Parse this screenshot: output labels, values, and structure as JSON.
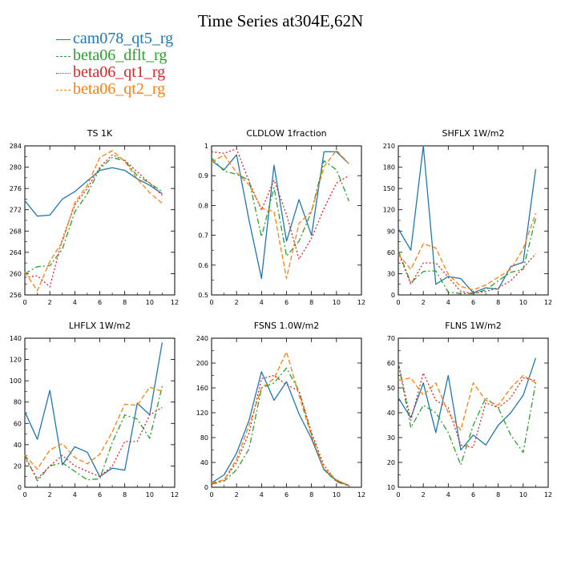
{
  "title": "Time Series at304E,62N",
  "legend": [
    {
      "name": "cam078_qt5_rg",
      "color": "#1f77b4",
      "dash": "solid"
    },
    {
      "name": "beta06_dflt_rg",
      "color": "#2ca02c",
      "dash": "dashdot"
    },
    {
      "name": "beta06_qt1_rg",
      "color": "#d62728",
      "dash": "dot"
    },
    {
      "name": "beta06_qt2_rg",
      "color": "#ff7f0e",
      "dash": "dash"
    }
  ],
  "chart_data": [
    {
      "type": "line",
      "title": "TS   1K",
      "xlim": [
        0,
        12
      ],
      "xticks": [
        0,
        2,
        4,
        6,
        8,
        10,
        12
      ],
      "ylim": [
        256,
        284
      ],
      "yticks": [
        256,
        260,
        264,
        268,
        272,
        276,
        280,
        284
      ],
      "x": [
        0,
        1,
        2,
        3,
        4,
        5,
        6,
        7,
        8,
        9,
        10,
        11
      ],
      "series": [
        {
          "name": "cam078_qt5_rg",
          "values": [
            273.7,
            270.8,
            271.0,
            274.0,
            275.4,
            277.4,
            279.4,
            279.9,
            279.4,
            277.8,
            276.6,
            275.0
          ]
        },
        {
          "name": "beta06_dflt_rg",
          "values": [
            260.0,
            261.3,
            261.5,
            264.6,
            271.6,
            275.0,
            279.7,
            281.8,
            281.2,
            278.4,
            277.0,
            275.4
          ]
        },
        {
          "name": "beta06_qt1_rg",
          "values": [
            259.3,
            259.6,
            257.5,
            266.5,
            272.9,
            276.0,
            280.0,
            282.3,
            281.3,
            279.1,
            277.0,
            274.7
          ]
        },
        {
          "name": "beta06_qt2_rg",
          "values": [
            260.3,
            256.8,
            262.3,
            266.0,
            273.3,
            276.6,
            281.8,
            283.1,
            281.1,
            277.8,
            275.2,
            273.2
          ]
        }
      ]
    },
    {
      "type": "line",
      "title": "CLDLOW   1fraction",
      "xlim": [
        0,
        12
      ],
      "xticks": [
        0,
        2,
        4,
        6,
        8,
        10,
        12
      ],
      "ylim": [
        0.5,
        1.0
      ],
      "yticks": [
        0.5,
        0.6,
        0.7,
        0.8,
        0.9,
        1.0
      ],
      "x": [
        0,
        1,
        2,
        3,
        4,
        5,
        6,
        7,
        8,
        9,
        10,
        11
      ],
      "series": [
        {
          "name": "cam078_qt5_rg",
          "values": [
            0.95,
            0.92,
            0.97,
            0.75,
            0.555,
            0.935,
            0.68,
            0.82,
            0.7,
            0.98,
            0.98,
            0.94
          ]
        },
        {
          "name": "beta06_dflt_rg",
          "values": [
            0.96,
            0.915,
            0.905,
            0.885,
            0.695,
            0.86,
            0.63,
            0.68,
            0.78,
            0.95,
            0.92,
            0.815
          ]
        },
        {
          "name": "beta06_qt1_rg",
          "values": [
            0.98,
            0.975,
            0.99,
            0.88,
            0.785,
            0.885,
            0.77,
            0.62,
            0.69,
            0.79,
            0.875,
            0.9
          ]
        },
        {
          "name": "beta06_qt2_rg",
          "values": [
            0.945,
            0.97,
            0.91,
            0.87,
            0.79,
            0.78,
            0.555,
            0.74,
            0.78,
            0.93,
            0.985,
            0.94
          ]
        }
      ]
    },
    {
      "type": "line",
      "title": "SHFLX   1W/m2",
      "xlim": [
        0,
        12
      ],
      "xticks": [
        0,
        2,
        4,
        6,
        8,
        10,
        12
      ],
      "ylim": [
        0,
        210
      ],
      "yticks": [
        0,
        30,
        60,
        90,
        120,
        150,
        180,
        210
      ],
      "x": [
        0,
        1,
        2,
        3,
        4,
        5,
        6,
        7,
        8,
        9,
        10,
        11
      ],
      "series": [
        {
          "name": "cam078_qt5_rg",
          "values": [
            93,
            63,
            210,
            15,
            26,
            23,
            3,
            10,
            8,
            40,
            46,
            177
          ]
        },
        {
          "name": "beta06_dflt_rg",
          "values": [
            62,
            17,
            33,
            34,
            4,
            2,
            2,
            7,
            20,
            32,
            36,
            108
          ]
        },
        {
          "name": "beta06_qt1_rg",
          "values": [
            60,
            15,
            45,
            45,
            25,
            5,
            2,
            5,
            10,
            20,
            38,
            58
          ]
        },
        {
          "name": "beta06_qt2_rg",
          "values": [
            57,
            36,
            72,
            66,
            29,
            12,
            7,
            14,
            25,
            36,
            65,
            115
          ]
        }
      ]
    },
    {
      "type": "line",
      "title": "LHFLX   1W/m2",
      "xlim": [
        0,
        12
      ],
      "xticks": [
        0,
        2,
        4,
        6,
        8,
        10,
        12
      ],
      "ylim": [
        0,
        140
      ],
      "yticks": [
        0,
        20,
        40,
        60,
        80,
        100,
        120,
        140
      ],
      "x": [
        0,
        1,
        2,
        3,
        4,
        5,
        6,
        7,
        8,
        9,
        10,
        11
      ],
      "series": [
        {
          "name": "cam078_qt5_rg",
          "values": [
            71,
            45,
            91,
            21,
            38,
            33,
            10,
            18,
            16,
            79,
            68,
            136
          ]
        },
        {
          "name": "beta06_dflt_rg",
          "values": [
            30,
            6,
            20,
            23,
            15,
            7,
            8,
            42,
            68,
            64,
            46,
            95
          ]
        },
        {
          "name": "beta06_qt1_rg",
          "values": [
            28,
            8,
            20,
            30,
            20,
            15,
            10,
            20,
            43,
            43,
            68,
            75
          ]
        },
        {
          "name": "beta06_qt2_rg",
          "values": [
            30,
            17,
            35,
            41,
            28,
            22,
            31,
            52,
            78,
            77,
            94,
            90
          ]
        }
      ]
    },
    {
      "type": "line",
      "title": "FSNS   1.0W/m2",
      "xlim": [
        0,
        12
      ],
      "xticks": [
        0,
        2,
        4,
        6,
        8,
        10,
        12
      ],
      "ylim": [
        0,
        240
      ],
      "yticks": [
        0,
        40,
        80,
        120,
        160,
        200,
        240
      ],
      "x": [
        0,
        1,
        2,
        3,
        4,
        5,
        6,
        7,
        8,
        9,
        10,
        11
      ],
      "series": [
        {
          "name": "cam078_qt5_rg",
          "values": [
            7,
            20,
            55,
            108,
            186,
            140,
            170,
            118,
            78,
            28,
            11,
            3
          ]
        },
        {
          "name": "beta06_dflt_rg",
          "values": [
            5,
            10,
            28,
            62,
            160,
            168,
            192,
            155,
            85,
            28,
            9,
            2
          ]
        },
        {
          "name": "beta06_qt1_rg",
          "values": [
            5,
            12,
            40,
            88,
            175,
            180,
            165,
            155,
            88,
            35,
            10,
            3
          ]
        },
        {
          "name": "beta06_qt2_rg",
          "values": [
            7,
            12,
            45,
            100,
            160,
            175,
            218,
            148,
            82,
            30,
            12,
            3
          ]
        }
      ]
    },
    {
      "type": "line",
      "title": "FLNS   1W/m2",
      "xlim": [
        0,
        12
      ],
      "xticks": [
        0,
        2,
        4,
        6,
        8,
        10,
        12
      ],
      "ylim": [
        10,
        70
      ],
      "yticks": [
        10,
        20,
        30,
        40,
        50,
        60,
        70
      ],
      "x": [
        0,
        1,
        2,
        3,
        4,
        5,
        6,
        7,
        8,
        9,
        10,
        11
      ],
      "series": [
        {
          "name": "cam078_qt5_rg",
          "values": [
            46,
            38,
            52,
            32,
            55,
            25,
            31,
            27,
            35,
            40,
            47,
            62
          ]
        },
        {
          "name": "beta06_dflt_rg",
          "values": [
            60,
            34,
            43,
            40,
            32,
            19,
            35,
            46,
            42,
            31,
            24,
            52
          ]
        },
        {
          "name": "beta06_qt1_rg",
          "values": [
            60,
            37,
            56,
            45,
            42,
            27,
            26,
            44,
            42,
            46,
            54,
            53
          ]
        },
        {
          "name": "beta06_qt2_rg",
          "values": [
            53,
            54,
            47,
            52,
            40,
            33,
            52,
            45,
            43,
            50,
            55,
            52
          ]
        }
      ]
    }
  ]
}
